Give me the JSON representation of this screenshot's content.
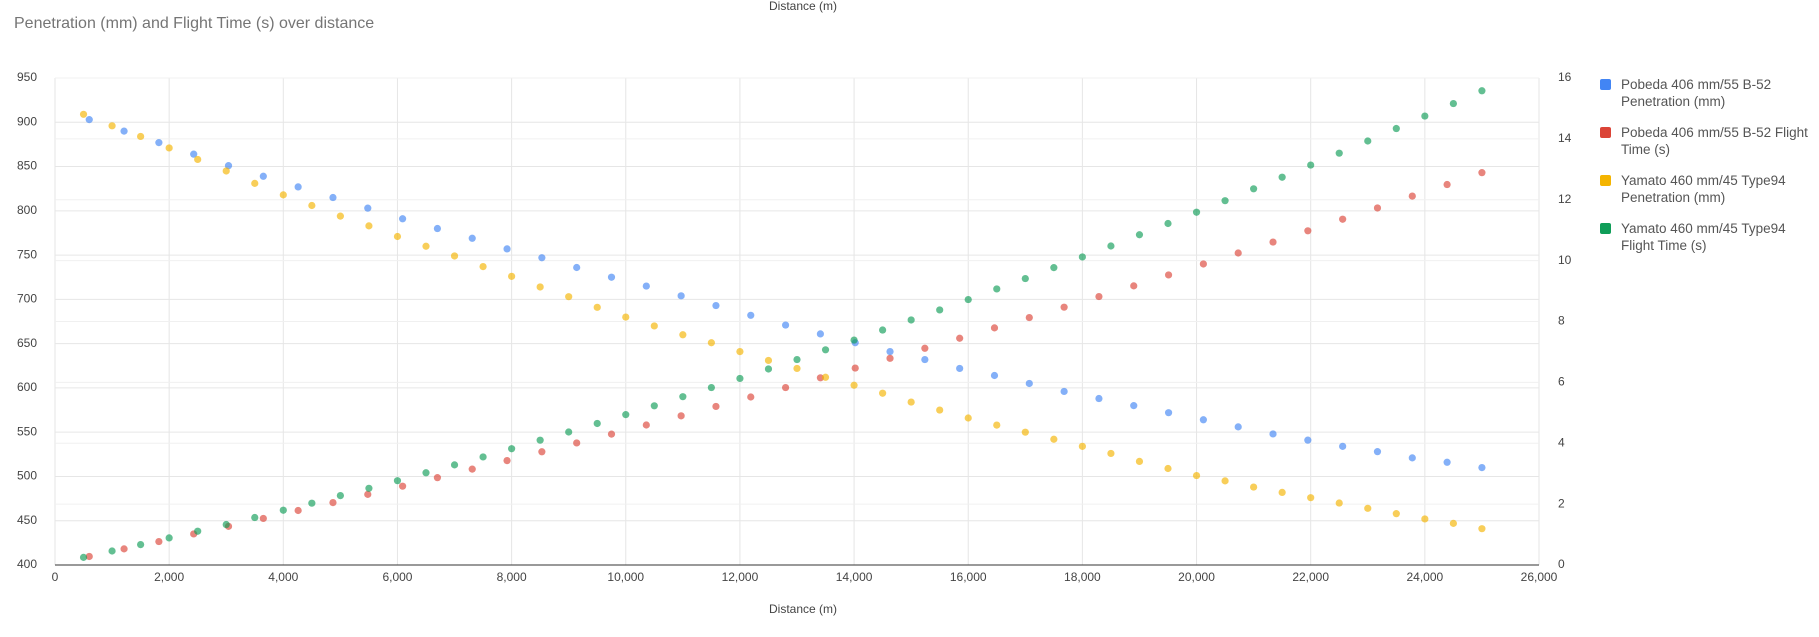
{
  "chart_data": {
    "type": "scatter",
    "title": "Penetration (mm) and Flight Time (s) over distance",
    "xlabel": "Distance (m)",
    "xlim": [
      0,
      26000
    ],
    "xticks": [
      0,
      {
        "value": 2000,
        "label": "2,000"
      },
      {
        "value": 4000,
        "label": "4,000"
      },
      {
        "value": 6000,
        "label": "6,000"
      },
      {
        "value": 8000,
        "label": "8,000"
      },
      {
        "value": 10000,
        "label": "10,000"
      },
      {
        "value": 12000,
        "label": "12,000"
      },
      {
        "value": 14000,
        "label": "14,000"
      },
      {
        "value": 16000,
        "label": "16,000"
      },
      {
        "value": 18000,
        "label": "18,000"
      },
      {
        "value": 20000,
        "label": "20,000"
      },
      {
        "value": 22000,
        "label": "22,000"
      },
      {
        "value": 24000,
        "label": "24,000"
      },
      {
        "value": 26000,
        "label": "26,000"
      }
    ],
    "ylim": [
      400,
      950
    ],
    "yticks": [
      400,
      450,
      500,
      550,
      600,
      650,
      700,
      750,
      800,
      850,
      900,
      950
    ],
    "y2lim": [
      0,
      16
    ],
    "y2ticks": [
      0,
      2,
      4,
      6,
      8,
      10,
      12,
      14,
      16
    ],
    "grid": true,
    "legend": "right",
    "series": [
      {
        "name": "Pobeda 406 mm/55 B-52 Penetration (mm)",
        "color": "#4285f4",
        "x": [
          600,
          1210,
          1820,
          2430,
          3040,
          3650,
          4260,
          4870,
          5480,
          6090,
          6700,
          7310,
          7920,
          8530,
          9140,
          9750,
          10360,
          10970,
          11580,
          12190,
          12800,
          13410,
          14020,
          14630,
          15240,
          15850,
          16460,
          17070,
          17680,
          18290,
          18900,
          19510,
          20120,
          20730,
          21340,
          21950,
          22560,
          23170,
          23780,
          24390,
          25000
        ],
        "values": [
          903,
          890,
          877,
          864,
          851,
          839,
          827,
          815,
          803,
          791,
          780,
          769,
          757,
          747,
          736,
          725,
          715,
          704,
          693,
          682,
          671,
          661,
          651,
          641,
          632,
          622,
          614,
          605,
          596,
          588,
          580,
          572,
          564,
          556,
          548,
          541,
          534,
          528,
          521,
          516,
          510
        ]
      },
      {
        "name": "Pobeda 406 mm/55 B-52 Flight Time (s)",
        "color": "#db4437",
        "axis": "y2",
        "x": [
          600,
          1210,
          1820,
          2430,
          3040,
          3650,
          4260,
          4870,
          5480,
          6090,
          6700,
          7310,
          7920,
          8530,
          9140,
          9750,
          10360,
          10970,
          11580,
          12190,
          12800,
          13410,
          14020,
          14630,
          15240,
          15850,
          16460,
          17070,
          17680,
          18290,
          18900,
          19510,
          20120,
          20730,
          21340,
          21950,
          22560,
          23170,
          23780,
          24390,
          25000
        ],
        "values": [
          0.28,
          0.53,
          0.77,
          1.02,
          1.27,
          1.53,
          1.79,
          2.05,
          2.32,
          2.59,
          2.87,
          3.15,
          3.43,
          3.72,
          4.01,
          4.3,
          4.6,
          4.9,
          5.21,
          5.52,
          5.83,
          6.15,
          6.47,
          6.79,
          7.12,
          7.45,
          7.79,
          8.13,
          8.47,
          8.82,
          9.17,
          9.53,
          9.89,
          10.25,
          10.61,
          10.98,
          11.36,
          11.73,
          12.12,
          12.5,
          12.89
        ]
      },
      {
        "name": "Yamato 460 mm/45 Type94 Penetration (mm)",
        "color": "#f4b400",
        "x": [
          500,
          1000,
          1500,
          2000,
          2500,
          3000,
          3500,
          4000,
          4500,
          5000,
          5500,
          6000,
          6500,
          7000,
          7500,
          8000,
          8500,
          9000,
          9500,
          10000,
          10500,
          11000,
          11500,
          12000,
          12500,
          13000,
          13500,
          14000,
          14500,
          15000,
          15500,
          16000,
          16500,
          17000,
          17500,
          18000,
          18500,
          19000,
          19500,
          20000,
          20500,
          21000,
          21500,
          22000,
          22500,
          23000,
          23500,
          24000,
          24500,
          25000
        ],
        "values": [
          909,
          896,
          884,
          871,
          858,
          845,
          831,
          818,
          806,
          794,
          783,
          771,
          760,
          749,
          737,
          726,
          714,
          703,
          691,
          680,
          670,
          660,
          651,
          641,
          631,
          622,
          612,
          603,
          594,
          584,
          575,
          566,
          558,
          550,
          542,
          534,
          526,
          517,
          509,
          501,
          495,
          488,
          482,
          476,
          470,
          464,
          458,
          452,
          447,
          441
        ]
      },
      {
        "name": "Yamato 460 mm/45 Type94 Flight Time (s)",
        "color": "#0f9d58",
        "axis": "y2",
        "x": [
          500,
          1000,
          1500,
          2000,
          2500,
          3000,
          3500,
          4000,
          4500,
          5000,
          5500,
          6000,
          6500,
          7000,
          7500,
          8000,
          8500,
          9000,
          9500,
          10000,
          10500,
          11000,
          11500,
          12000,
          12500,
          13000,
          13500,
          14000,
          14500,
          15000,
          15500,
          16000,
          16500,
          17000,
          17500,
          18000,
          18500,
          19000,
          19500,
          20000,
          20500,
          21000,
          21500,
          22000,
          22500,
          23000,
          23500,
          24000,
          24500,
          25000
        ],
        "values": [
          0.25,
          0.46,
          0.67,
          0.89,
          1.11,
          1.33,
          1.56,
          1.8,
          2.03,
          2.28,
          2.52,
          2.77,
          3.03,
          3.29,
          3.55,
          3.82,
          4.1,
          4.37,
          4.65,
          4.94,
          5.23,
          5.53,
          5.83,
          6.13,
          6.44,
          6.75,
          7.07,
          7.39,
          7.72,
          8.05,
          8.38,
          8.72,
          9.07,
          9.41,
          9.77,
          10.12,
          10.48,
          10.85,
          11.22,
          11.59,
          11.97,
          12.36,
          12.74,
          13.14,
          13.53,
          13.93,
          14.34,
          14.75,
          15.16,
          15.58
        ]
      }
    ]
  }
}
